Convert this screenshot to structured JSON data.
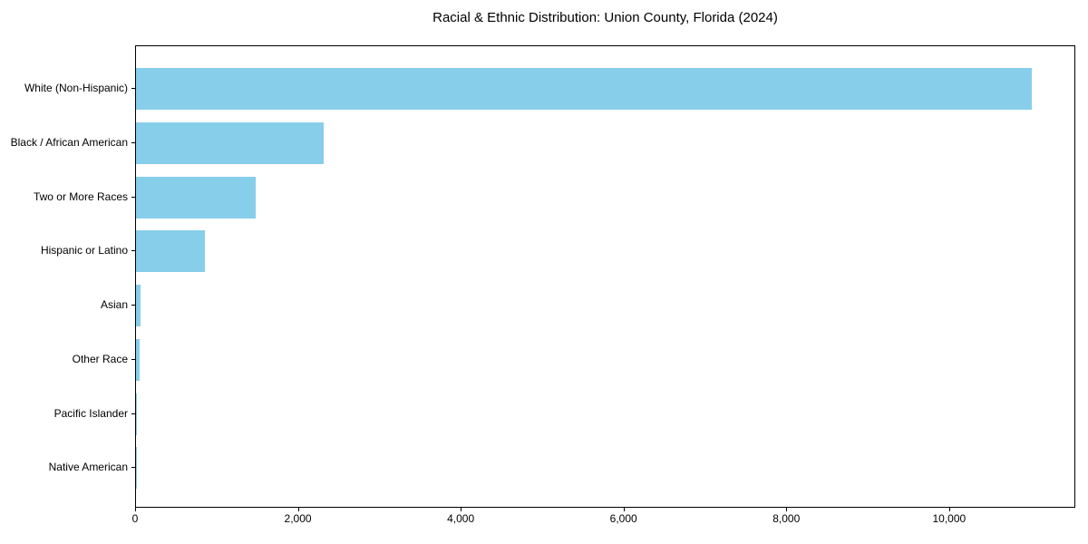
{
  "chart_data": {
    "type": "bar",
    "orientation": "horizontal",
    "title": "Racial & Ethnic Distribution: Union County, Florida (2024)",
    "categories": [
      "White (Non-Hispanic)",
      "Black / African American",
      "Two or More Races",
      "Hispanic or Latino",
      "Asian",
      "Other Race",
      "Pacific Islander",
      "Native American"
    ],
    "values": [
      11000,
      2300,
      1470,
      850,
      55,
      42,
      12,
      3
    ],
    "bar_color": "#87CEEB",
    "xlabel": "",
    "ylabel": "",
    "xlim": [
      0,
      11550
    ],
    "xticks": {
      "values": [
        0,
        2000,
        4000,
        6000,
        8000,
        10000
      ],
      "labels": [
        "0",
        "2,000",
        "4,000",
        "6,000",
        "8,000",
        "10,000"
      ]
    },
    "grid": false,
    "legend_position": "none"
  }
}
